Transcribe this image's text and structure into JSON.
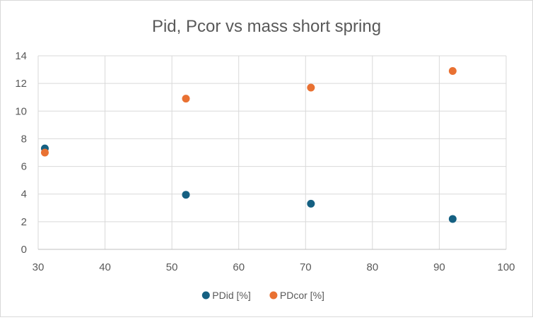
{
  "chart_data": {
    "type": "scatter",
    "title": "Pid, Pcor vs mass short spring",
    "xlabel": "",
    "ylabel": "",
    "xlim": [
      30,
      100
    ],
    "ylim": [
      0,
      14
    ],
    "xticks": [
      30,
      40,
      50,
      60,
      70,
      80,
      90,
      100
    ],
    "yticks": [
      0,
      2,
      4,
      6,
      8,
      10,
      12,
      14
    ],
    "grid": true,
    "legend_position": "bottom",
    "series": [
      {
        "name": "PDid [%]",
        "color": "#156082",
        "points": [
          {
            "x": 31,
            "y": 7.3
          },
          {
            "x": 52.1,
            "y": 3.95
          },
          {
            "x": 70.8,
            "y": 3.3
          },
          {
            "x": 92,
            "y": 2.2
          }
        ]
      },
      {
        "name": "PDcor [%]",
        "color": "#E97132",
        "points": [
          {
            "x": 31,
            "y": 7.0
          },
          {
            "x": 52.1,
            "y": 10.9
          },
          {
            "x": 70.8,
            "y": 11.7
          },
          {
            "x": 92,
            "y": 12.9
          }
        ]
      }
    ]
  }
}
